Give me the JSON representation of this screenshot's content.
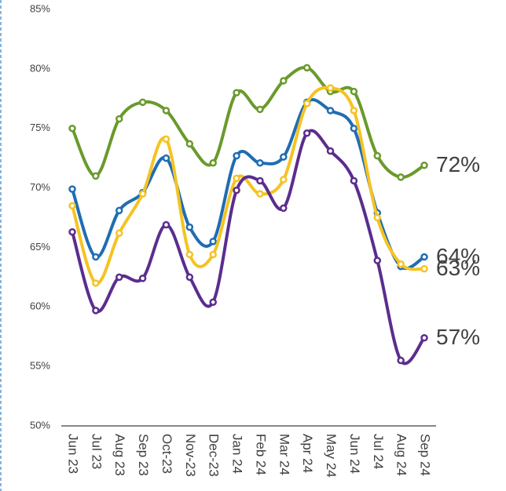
{
  "chart_data": {
    "type": "line",
    "categories": [
      "Jun 23",
      "Jul 23",
      "Aug 23",
      "Sep 23",
      "Oct-23",
      "Nov-23",
      "Dec-23",
      "Jan 24",
      "Feb 24",
      "Mar 24",
      "Apr 24",
      "May 24",
      "Jun 24",
      "Jul 24",
      "Aug 24",
      "Sep 24"
    ],
    "series": [
      {
        "color": "#6a9a2c",
        "values": [
          75.0,
          71.0,
          75.8,
          77.2,
          76.5,
          73.7,
          72.1,
          78.0,
          76.6,
          79.0,
          80.1,
          78.1,
          78.1,
          72.7,
          70.9,
          71.9
        ],
        "value_labels": [
          null,
          null,
          null,
          null,
          null,
          null,
          null,
          null,
          null,
          null,
          null,
          null,
          null,
          null,
          null,
          "72%"
        ]
      },
      {
        "color": "#1f6db3",
        "values": [
          69.9,
          64.2,
          68.1,
          69.6,
          72.5,
          66.7,
          65.5,
          72.7,
          72.1,
          72.6,
          77.2,
          76.5,
          75.0,
          67.9,
          63.4,
          64.2
        ],
        "value_labels": [
          null,
          null,
          null,
          null,
          null,
          null,
          null,
          null,
          null,
          null,
          null,
          null,
          null,
          null,
          null,
          "64%"
        ]
      },
      {
        "color": "#f5c322",
        "values": [
          68.5,
          62.0,
          66.2,
          69.5,
          74.1,
          64.4,
          64.4,
          70.8,
          69.5,
          70.7,
          77.1,
          78.4,
          76.5,
          67.5,
          63.6,
          63.2
        ],
        "value_labels": [
          null,
          null,
          null,
          null,
          null,
          null,
          null,
          null,
          null,
          null,
          null,
          null,
          null,
          null,
          null,
          "63%"
        ]
      },
      {
        "color": "#5b2d8e",
        "values": [
          66.3,
          59.7,
          62.5,
          62.4,
          66.9,
          62.5,
          60.4,
          69.8,
          70.6,
          68.3,
          74.6,
          73.1,
          70.6,
          63.9,
          55.5,
          57.4
        ],
        "value_labels": [
          null,
          null,
          null,
          null,
          null,
          null,
          null,
          null,
          null,
          null,
          null,
          null,
          null,
          null,
          null,
          "57%"
        ]
      }
    ],
    "ylim": [
      50,
      85
    ],
    "yticks": [
      {
        "value": 50,
        "label": "50%"
      },
      {
        "value": 55,
        "label": "55%"
      },
      {
        "value": 60,
        "label": "60%"
      },
      {
        "value": 65,
        "label": "65%"
      },
      {
        "value": 70,
        "label": "70%"
      },
      {
        "value": 75,
        "label": "75%"
      },
      {
        "value": 80,
        "label": "80%"
      },
      {
        "value": 85,
        "label": "85%"
      }
    ],
    "grid": false
  }
}
